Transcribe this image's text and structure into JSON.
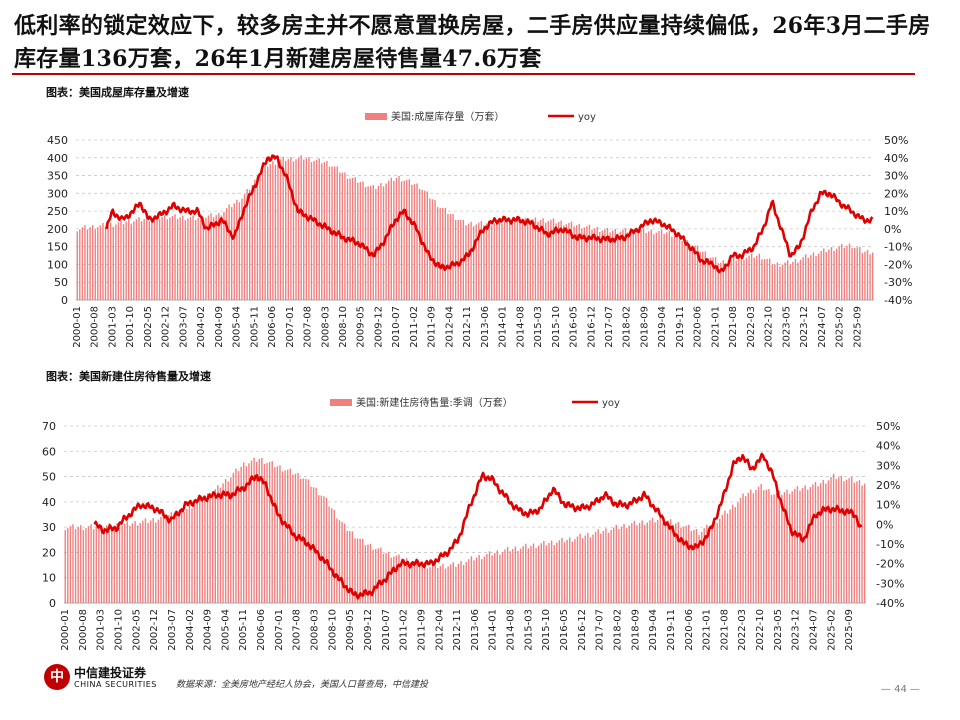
{
  "headline": "低利率的锁定效应下，较多房主并不愿意置换房屋，二手房供应量持续偏低，26年3月二手房库存量136万套，26年1月新建房屋待售量47.6万套",
  "colors": {
    "accent": "#c00000",
    "bar": "#f08080",
    "line": "#e00000"
  },
  "chart_data": [
    {
      "type": "bar+line",
      "caption": "图表：美国成屋库存量及增速",
      "legend": {
        "bar": "美国:成屋库存量（万套）",
        "line": "yoy"
      },
      "legend_position": "top-center",
      "x_ticks": [
        "2000-01",
        "2000-08",
        "2001-03",
        "2001-10",
        "2002-05",
        "2002-12",
        "2003-07",
        "2004-02",
        "2004-09",
        "2005-04",
        "2005-11",
        "2006-06",
        "2007-01",
        "2007-08",
        "2008-03",
        "2008-10",
        "2009-05",
        "2009-12",
        "2010-07",
        "2011-02",
        "2011-09",
        "2012-04",
        "2012-11",
        "2013-06",
        "2014-01",
        "2014-08",
        "2015-03",
        "2015-10",
        "2016-05",
        "2016-12",
        "2017-07",
        "2018-02",
        "2018-09",
        "2019-04",
        "2019-11",
        "2020-06",
        "2021-01",
        "2021-08",
        "2022-03",
        "2022-10",
        "2023-05",
        "2023-12",
        "2024-07",
        "2025-02",
        "2025-09"
      ],
      "y_left_ticks": [
        "0",
        "50",
        "100",
        "150",
        "200",
        "250",
        "300",
        "350",
        "400",
        "450"
      ],
      "y_right_ticks": [
        "-40%",
        "-30%",
        "-20%",
        "-10%",
        "0%",
        "10%",
        "20%",
        "30%",
        "40%",
        "50%"
      ],
      "ylim_left": [
        0,
        450
      ],
      "ylim_right": [
        -40,
        50
      ],
      "grid": "horizontal-dashed",
      "bar_anchors": [
        [
          2000.0,
          200
        ],
        [
          2001.0,
          210
        ],
        [
          2002.0,
          225
        ],
        [
          2003.0,
          235
        ],
        [
          2004.0,
          230
        ],
        [
          2004.7,
          240
        ],
        [
          2005.5,
          290
        ],
        [
          2006.3,
          380
        ],
        [
          2006.8,
          395
        ],
        [
          2007.5,
          400
        ],
        [
          2008.3,
          385
        ],
        [
          2009.0,
          345
        ],
        [
          2009.8,
          315
        ],
        [
          2010.6,
          345
        ],
        [
          2011.3,
          320
        ],
        [
          2012.0,
          260
        ],
        [
          2012.8,
          215
        ],
        [
          2013.5,
          215
        ],
        [
          2014.5,
          225
        ],
        [
          2015.5,
          225
        ],
        [
          2016.5,
          210
        ],
        [
          2017.5,
          195
        ],
        [
          2018.5,
          195
        ],
        [
          2019.5,
          190
        ],
        [
          2020.2,
          160
        ],
        [
          2020.9,
          120
        ],
        [
          2021.2,
          105
        ],
        [
          2021.9,
          120
        ],
        [
          2022.5,
          125
        ],
        [
          2023.0,
          100
        ],
        [
          2023.5,
          105
        ],
        [
          2024.3,
          130
        ],
        [
          2024.9,
          145
        ],
        [
          2025.5,
          155
        ],
        [
          2025.9,
          136
        ],
        [
          2026.2,
          136
        ]
      ],
      "line_anchors": [
        [
          2001.0,
          0
        ],
        [
          2001.2,
          10
        ],
        [
          2001.5,
          5
        ],
        [
          2001.9,
          10
        ],
        [
          2002.1,
          15
        ],
        [
          2002.4,
          5
        ],
        [
          2002.8,
          8
        ],
        [
          2003.2,
          13
        ],
        [
          2003.6,
          10
        ],
        [
          2004.0,
          10
        ],
        [
          2004.3,
          0
        ],
        [
          2004.8,
          5
        ],
        [
          2005.2,
          -5
        ],
        [
          2005.5,
          10
        ],
        [
          2005.9,
          25
        ],
        [
          2006.3,
          40
        ],
        [
          2006.6,
          40
        ],
        [
          2006.9,
          30
        ],
        [
          2007.3,
          10
        ],
        [
          2007.8,
          5
        ],
        [
          2008.3,
          0
        ],
        [
          2008.8,
          -5
        ],
        [
          2009.3,
          -8
        ],
        [
          2009.8,
          -15
        ],
        [
          2010.2,
          -5
        ],
        [
          2010.5,
          5
        ],
        [
          2010.8,
          10
        ],
        [
          2011.2,
          0
        ],
        [
          2011.6,
          -15
        ],
        [
          2012.0,
          -22
        ],
        [
          2012.5,
          -20
        ],
        [
          2012.9,
          -15
        ],
        [
          2013.4,
          0
        ],
        [
          2013.8,
          5
        ],
        [
          2014.2,
          5
        ],
        [
          2014.6,
          5
        ],
        [
          2015.0,
          3
        ],
        [
          2015.5,
          -3
        ],
        [
          2016.0,
          0
        ],
        [
          2016.5,
          -5
        ],
        [
          2017.0,
          -5
        ],
        [
          2017.5,
          -6
        ],
        [
          2018.0,
          -5
        ],
        [
          2018.5,
          0
        ],
        [
          2018.9,
          5
        ],
        [
          2019.3,
          3
        ],
        [
          2019.8,
          -3
        ],
        [
          2020.2,
          -10
        ],
        [
          2020.6,
          -18
        ],
        [
          2021.0,
          -20
        ],
        [
          2021.2,
          -25
        ],
        [
          2021.6,
          -15
        ],
        [
          2021.9,
          -15
        ],
        [
          2022.3,
          -10
        ],
        [
          2022.6,
          0
        ],
        [
          2022.9,
          15
        ],
        [
          2023.1,
          5
        ],
        [
          2023.5,
          -15
        ],
        [
          2023.8,
          -10
        ],
        [
          2024.2,
          10
        ],
        [
          2024.5,
          20
        ],
        [
          2024.8,
          20
        ],
        [
          2025.1,
          15
        ],
        [
          2025.5,
          10
        ],
        [
          2025.9,
          5
        ],
        [
          2026.2,
          5
        ]
      ]
    },
    {
      "type": "bar+line",
      "caption": "图表：美国新建住房待售量及增速",
      "legend": {
        "bar": "美国:新建住房待售量:季调（万套）",
        "line": "yoy"
      },
      "legend_position": "top-center",
      "x_ticks": [
        "2000-01",
        "2000-08",
        "2001-03",
        "2001-10",
        "2002-05",
        "2002-12",
        "2003-07",
        "2004-02",
        "2004-09",
        "2005-04",
        "2005-11",
        "2006-06",
        "2007-01",
        "2007-08",
        "2008-03",
        "2008-10",
        "2009-05",
        "2009-12",
        "2010-07",
        "2011-02",
        "2011-09",
        "2012-04",
        "2012-11",
        "2013-06",
        "2014-01",
        "2014-08",
        "2015-03",
        "2015-10",
        "2016-05",
        "2016-12",
        "2017-07",
        "2018-02",
        "2018-09",
        "2019-04",
        "2019-11",
        "2020-06",
        "2021-01",
        "2021-08",
        "2022-03",
        "2022-10",
        "2023-05",
        "2023-12",
        "2024-07",
        "2025-02",
        "2025-09"
      ],
      "y_left_ticks": [
        "0",
        "10",
        "20",
        "30",
        "40",
        "50",
        "60",
        "70"
      ],
      "y_right_ticks": [
        "-40%",
        "-30%",
        "-20%",
        "-10%",
        "0%",
        "10%",
        "20%",
        "30%",
        "40%",
        "50%"
      ],
      "ylim_left": [
        0,
        70
      ],
      "ylim_right": [
        -40,
        50
      ],
      "grid": "horizontal-dashed",
      "bar_anchors": [
        [
          2000.0,
          30
        ],
        [
          2001.0,
          30
        ],
        [
          2002.0,
          31
        ],
        [
          2003.0,
          33
        ],
        [
          2004.0,
          37
        ],
        [
          2005.0,
          45
        ],
        [
          2005.9,
          55
        ],
        [
          2006.4,
          57
        ],
        [
          2007.0,
          54
        ],
        [
          2007.8,
          50
        ],
        [
          2008.5,
          42
        ],
        [
          2009.2,
          30
        ],
        [
          2009.8,
          24
        ],
        [
          2010.5,
          20
        ],
        [
          2011.2,
          17
        ],
        [
          2012.0,
          14.5
        ],
        [
          2012.8,
          15
        ],
        [
          2013.5,
          18
        ],
        [
          2014.5,
          21
        ],
        [
          2015.5,
          23
        ],
        [
          2016.5,
          25
        ],
        [
          2017.5,
          28
        ],
        [
          2018.5,
          31
        ],
        [
          2019.5,
          33
        ],
        [
          2020.2,
          31
        ],
        [
          2020.8,
          28
        ],
        [
          2021.2,
          31
        ],
        [
          2021.8,
          37
        ],
        [
          2022.3,
          43
        ],
        [
          2022.8,
          46
        ],
        [
          2023.3,
          43
        ],
        [
          2024.0,
          45
        ],
        [
          2024.7,
          47
        ],
        [
          2025.2,
          50
        ],
        [
          2025.7,
          49
        ],
        [
          2026.1,
          47.6
        ]
      ],
      "line_anchors": [
        [
          2001.0,
          0
        ],
        [
          2001.3,
          -3
        ],
        [
          2001.7,
          -2
        ],
        [
          2002.0,
          3
        ],
        [
          2002.5,
          10
        ],
        [
          2003.0,
          8
        ],
        [
          2003.5,
          2
        ],
        [
          2004.0,
          10
        ],
        [
          2004.5,
          13
        ],
        [
          2005.0,
          15
        ],
        [
          2005.5,
          15
        ],
        [
          2006.0,
          20
        ],
        [
          2006.3,
          25
        ],
        [
          2006.6,
          20
        ],
        [
          2007.0,
          5
        ],
        [
          2007.5,
          -5
        ],
        [
          2008.0,
          -10
        ],
        [
          2008.5,
          -18
        ],
        [
          2009.0,
          -28
        ],
        [
          2009.5,
          -36
        ],
        [
          2010.0,
          -35
        ],
        [
          2010.5,
          -28
        ],
        [
          2011.0,
          -20
        ],
        [
          2011.5,
          -20
        ],
        [
          2012.0,
          -20
        ],
        [
          2012.5,
          -15
        ],
        [
          2012.9,
          -8
        ],
        [
          2013.3,
          10
        ],
        [
          2013.7,
          25
        ],
        [
          2014.0,
          23
        ],
        [
          2014.4,
          15
        ],
        [
          2014.8,
          8
        ],
        [
          2015.2,
          5
        ],
        [
          2015.6,
          8
        ],
        [
          2016.0,
          18
        ],
        [
          2016.4,
          10
        ],
        [
          2016.9,
          8
        ],
        [
          2017.3,
          10
        ],
        [
          2017.7,
          15
        ],
        [
          2018.1,
          10
        ],
        [
          2018.5,
          10
        ],
        [
          2019.0,
          15
        ],
        [
          2019.5,
          5
        ],
        [
          2019.9,
          -3
        ],
        [
          2020.3,
          -10
        ],
        [
          2020.7,
          -12
        ],
        [
          2021.1,
          -5
        ],
        [
          2021.5,
          10
        ],
        [
          2021.9,
          30
        ],
        [
          2022.2,
          35
        ],
        [
          2022.5,
          28
        ],
        [
          2022.9,
          35
        ],
        [
          2023.2,
          25
        ],
        [
          2023.5,
          10
        ],
        [
          2023.8,
          -3
        ],
        [
          2024.2,
          -8
        ],
        [
          2024.6,
          5
        ],
        [
          2025.0,
          8
        ],
        [
          2025.5,
          7
        ],
        [
          2025.9,
          5
        ],
        [
          2026.1,
          -3
        ]
      ]
    }
  ],
  "footer": {
    "logo_glyph": "中",
    "brand_cn": "中信建投证券",
    "brand_en": "CHINA SECURITIES",
    "source": "数据来源：全美房地产经纪人协会，美国人口普查局，中信建投",
    "page_number": "— 44 —"
  }
}
